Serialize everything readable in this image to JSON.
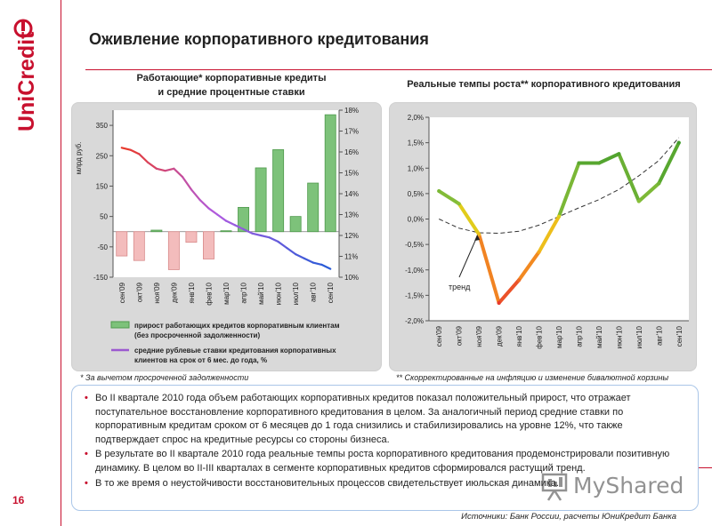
{
  "brand": {
    "name": "UniCredit",
    "accent": "#c8102e",
    "panel_bg": "#d9d9d9",
    "box_border": "#aac6e8"
  },
  "page_title": "Оживление корпоративного кредитования",
  "page_number": "16",
  "left_chart": {
    "title_line1": "Работающие* корпоративные кредиты",
    "title_line2": "и средние процентные ставки",
    "footnote": "* За вычетом просроченной задолженности",
    "legend": [
      "прирост работающих кредитов корпоративным клиентам",
      "(без просроченной задолженности)",
      "средние рублевые ставки кредитования корпоративных",
      "клиентов на срок от 6 мес. до года, %"
    ]
  },
  "right_chart": {
    "title": "Реальные темпы роста** корпоративного кредитования",
    "footnote": "** Скорректированные на инфляцию и изменение бивалютной корзины"
  },
  "bullets": [
    "Во II квартале 2010 года объем работающих корпоративных кредитов показал положительный прирост, что отражает поступательное восстановление корпоративного кредитования в целом. За аналогичный период средние ставки по корпоративным кредитам сроком от 6 месяцев до 1 года снизились и стабилизировались на уровне 12%, что также подтверждает спрос на кредитные ресурсы со стороны бизнеса.",
    "В результате во II квартале 2010 года реальные темпы роста корпоративного кредитования продемонстрировали позитивную динамику. В целом во II-III кварталах в сегменте корпоративных кредитов сформировался растущий тренд.",
    "В то же время о неустойчивости восстановительных процессов свидетельствует июльская динамика."
  ],
  "sources": "Источники: Банк России, расчеты ЮниКредит Банка",
  "watermark": "MyShared",
  "chart_data": [
    {
      "type": "bar",
      "categories": [
        "сен'09",
        "окт'09",
        "ноя'09",
        "дек'09",
        "янв'10",
        "фев'10",
        "мар'10",
        "апр'10",
        "май'10",
        "июн'10",
        "июл'10",
        "авг'10",
        "сен'10"
      ],
      "ylabel": "млрд руб.",
      "ylim": [
        -150,
        400
      ],
      "yticks": [
        "350",
        "250",
        "150",
        "50",
        "-50",
        "-150"
      ],
      "y2lim": [
        10,
        18
      ],
      "y2ticks": [
        "18%",
        "17%",
        "16%",
        "15%",
        "14%",
        "13%",
        "12%",
        "11%",
        "10%"
      ],
      "series": [
        {
          "name": "прирост работающих кредитов корпоративным клиентам (без просроченной задолженности)",
          "axis": "left",
          "type": "bar",
          "values": [
            -80,
            -95,
            5,
            -125,
            -35,
            -90,
            3,
            80,
            210,
            270,
            50,
            160,
            385
          ]
        },
        {
          "name": "средние рублевые ставки кредитования корпоративных клиентов на срок от 6 мес. до года, %",
          "axis": "right",
          "type": "line",
          "x": [
            0,
            0.5,
            1,
            1.5,
            2,
            2.5,
            3,
            3.5,
            4,
            4.5,
            5,
            5.5,
            6,
            6.5,
            7,
            7.5,
            8,
            8.5,
            9,
            9.5,
            10,
            10.5,
            11,
            11.5,
            12
          ],
          "values": [
            16.2,
            16.1,
            15.9,
            15.5,
            15.2,
            15.1,
            15.2,
            14.8,
            14.2,
            13.7,
            13.3,
            13.0,
            12.7,
            12.5,
            12.3,
            12.1,
            12.0,
            11.9,
            11.7,
            11.4,
            11.1,
            10.9,
            10.7,
            10.6,
            10.4
          ]
        }
      ],
      "colors": {
        "positive": "#7dc27a",
        "negative": "#f3bcbc",
        "rate_start": "#e8392c",
        "rate_end": "#2a5bd7"
      }
    },
    {
      "type": "line",
      "categories": [
        "сен'09",
        "окт'09",
        "ноя'09",
        "дек'09",
        "янв'10",
        "фев'10",
        "мар'10",
        "апр'10",
        "май'10",
        "июн'10",
        "июл'10",
        "авг'10",
        "сен'10"
      ],
      "ylim": [
        -2.0,
        2.0
      ],
      "yticks": [
        "2,0%",
        "1,5%",
        "1,0%",
        "0,5%",
        "0,0%",
        "-0,5%",
        "-1,0%",
        "-1,5%",
        "-2,0%"
      ],
      "annotation": "тренд",
      "series": [
        {
          "name": "",
          "values": [
            0.55,
            0.3,
            -0.3,
            -1.65,
            -1.2,
            -0.65,
            0.05,
            1.1,
            1.1,
            1.28,
            0.35,
            0.7,
            1.5
          ]
        },
        {
          "name": "тренд",
          "style": "dashed",
          "values": [
            0.0,
            -0.18,
            -0.27,
            -0.28,
            -0.24,
            -0.12,
            0.05,
            0.22,
            0.38,
            0.58,
            0.85,
            1.15,
            1.6
          ]
        }
      ],
      "grid": false
    }
  ]
}
